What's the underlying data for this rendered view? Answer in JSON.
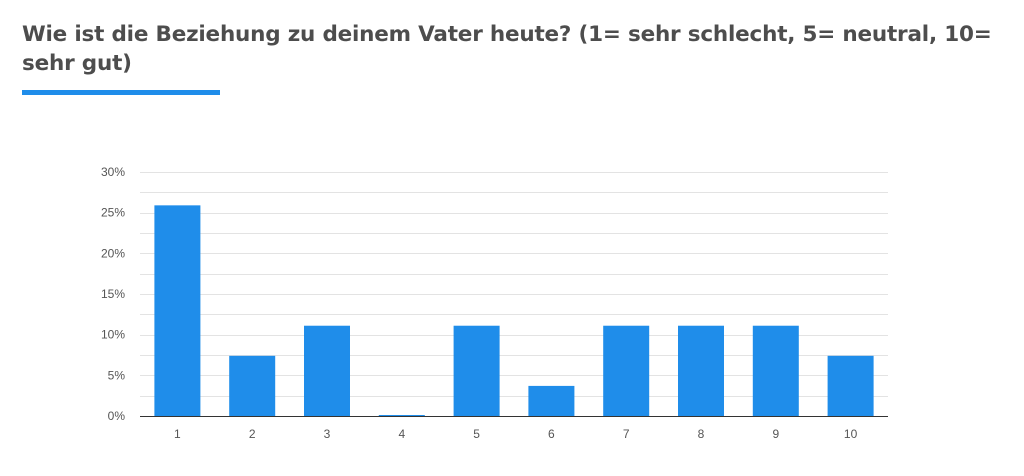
{
  "question": {
    "title": "Wie ist die Beziehung zu deinem Vater heute? (1= sehr schlecht, 5= neutral, 10= sehr gut)"
  },
  "colors": {
    "bar": "#1f8dea",
    "accent": "#1f8dea",
    "grid": "#e3e3e3",
    "axis": "#333333",
    "text": "#4d4d4d"
  },
  "chart_data": {
    "type": "bar",
    "title": "",
    "xlabel": "",
    "ylabel": "",
    "categories": [
      "1",
      "2",
      "3",
      "4",
      "5",
      "6",
      "7",
      "8",
      "9",
      "10"
    ],
    "values": [
      25.9,
      7.4,
      11.1,
      0.0,
      11.1,
      3.7,
      11.1,
      11.1,
      11.1,
      7.4
    ],
    "unit": "%",
    "ylim": [
      0,
      30
    ],
    "yticks": [
      0,
      5,
      10,
      15,
      20,
      25,
      30
    ],
    "ytick_labels": [
      "0%",
      "5%",
      "10%",
      "15%",
      "20%",
      "25%",
      "30%"
    ],
    "minor_gridlines": true,
    "legend": "none"
  }
}
